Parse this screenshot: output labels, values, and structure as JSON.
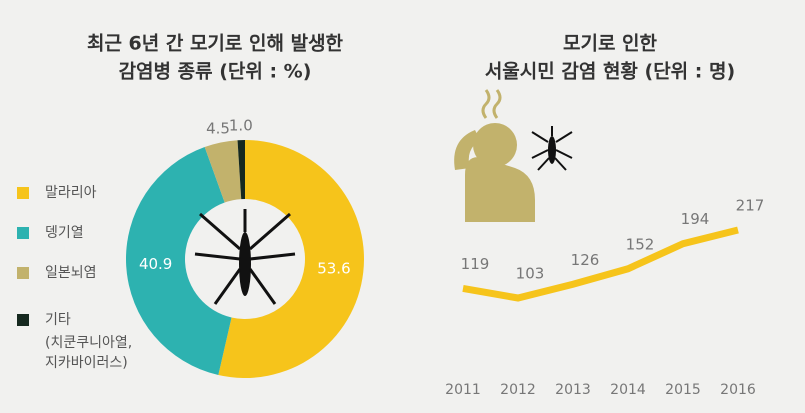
{
  "chart_data": [
    {
      "type": "pie",
      "title": [
        "최근 6년 간 모기로 인해 발생한",
        "감염병 종류 (단위 : %)"
      ],
      "categories": [
        "말라리아",
        "뎅기열",
        "일본뇌염",
        "기타"
      ],
      "legend_note": [
        "(치쿤쿠니아열,",
        "지카바이러스)"
      ],
      "values": [
        53.6,
        40.9,
        4.5,
        1.0
      ],
      "value_labels": [
        "53.6",
        "40.9",
        "4.5",
        "1.0"
      ],
      "colors": [
        "#f6c41b",
        "#2db2b0",
        "#c2b26c",
        "#16291f"
      ]
    },
    {
      "type": "line",
      "title": [
        "모기로 인한",
        "서울시민 감염 현황 (단위 : 명)"
      ],
      "categories": [
        "2011",
        "2012",
        "2013",
        "2014",
        "2015",
        "2016"
      ],
      "values": [
        119,
        103,
        126,
        152,
        194,
        217
      ],
      "color": "#f6c41b"
    }
  ]
}
